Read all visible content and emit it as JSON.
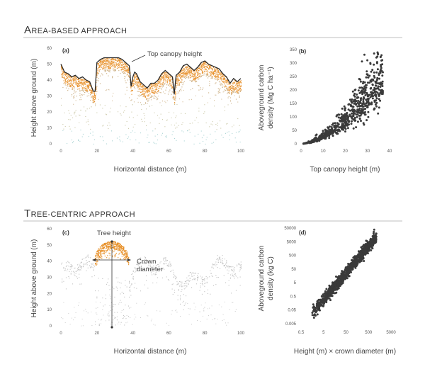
{
  "sections": {
    "area": {
      "cap": "A",
      "rest": "REA-BASED APPROACH"
    },
    "tree": {
      "cap": "T",
      "rest": "REE-CENTRIC APPROACH"
    }
  },
  "colors": {
    "orange": "#e8912a",
    "tan": "#c8a878",
    "olive": "#b9b68a",
    "teal": "#8cc4c4",
    "gray": "#b7b7b7",
    "points": "#3a3a3a",
    "canopy_line": "#2a2a2a"
  },
  "chart_data": [
    {
      "id": "a",
      "panel_label": "(a)",
      "type": "scatter",
      "xlabel": "Horizontal distance (m)",
      "ylabel": "Height above ground (m)",
      "xlim": [
        0,
        100
      ],
      "ylim": [
        0,
        60
      ],
      "xticks": [
        "0",
        "20",
        "40",
        "60",
        "80",
        "100"
      ],
      "yticks": [
        "0",
        "10",
        "20",
        "30",
        "40",
        "50",
        "60"
      ],
      "annotation": "Top canopy height",
      "top_canopy_height": {
        "x": [
          0,
          2,
          4,
          6,
          8,
          10,
          12,
          14,
          16,
          18,
          19,
          20,
          22,
          24,
          26,
          28,
          30,
          32,
          34,
          36,
          38,
          39,
          40,
          41,
          42,
          44,
          46,
          48,
          50,
          52,
          54,
          56,
          58,
          60,
          62,
          63,
          64,
          66,
          68,
          70,
          72,
          74,
          76,
          78,
          80,
          82,
          84,
          86,
          88,
          90,
          92,
          94,
          96,
          98,
          100
        ],
        "y": [
          50,
          45,
          44,
          42,
          43,
          41,
          42,
          40,
          39,
          33,
          33,
          51,
          53,
          54,
          54,
          54,
          54,
          54,
          53,
          51,
          49,
          36,
          42,
          45,
          44,
          39,
          37,
          35,
          38,
          38,
          40,
          44,
          46,
          44,
          42,
          31,
          43,
          45,
          49,
          50,
          48,
          46,
          48,
          51,
          52,
          50,
          49,
          48,
          47,
          44,
          42,
          38,
          41,
          39,
          41
        ]
      },
      "layers": [
        {
          "name": "orange canopy",
          "color_key": "orange"
        },
        {
          "name": "tan mid",
          "color_key": "tan"
        },
        {
          "name": "olive understory",
          "color_key": "olive"
        },
        {
          "name": "teal ground",
          "color_key": "teal"
        }
      ]
    },
    {
      "id": "b",
      "panel_label": "(b)",
      "type": "scatter",
      "xlabel": "Top canopy height (m)",
      "ylabel_line1": "Aboveground carbon",
      "ylabel_line2": "density (Mg C ha⁻¹)",
      "xlim": [
        0,
        40
      ],
      "ylim": [
        0,
        350
      ],
      "xticks": [
        "0",
        "10",
        "20",
        "30",
        "40"
      ],
      "yticks": [
        "0",
        "50",
        "100",
        "150",
        "200",
        "250",
        "300",
        "350"
      ],
      "relation": "carbon ≈ 0.55 × height^1.7",
      "n_points": 650
    },
    {
      "id": "c",
      "panel_label": "(c)",
      "type": "scatter",
      "xlabel": "Horizontal distance (m)",
      "ylabel": "Height above ground (m)",
      "xlim": [
        0,
        100
      ],
      "ylim": [
        0,
        60
      ],
      "xticks": [
        "0",
        "20",
        "40",
        "60",
        "80",
        "100"
      ],
      "yticks": [
        "0",
        "10",
        "20",
        "30",
        "40",
        "50",
        "60"
      ],
      "annotation_tree_height": "Tree height",
      "annotation_crown_1": "Crown",
      "annotation_crown_2": "diameter",
      "highlighted_tree": {
        "x": 28.5,
        "top": 52.5,
        "crown_left": 18.5,
        "crown_right": 37.5,
        "crown_height": 40.5
      }
    },
    {
      "id": "d",
      "panel_label": "(d)",
      "type": "scatter",
      "xlabel": "Height (m) × crown diameter (m)",
      "ylabel_line1": "Aboveground carbon",
      "ylabel_line2": "density (kg C)",
      "xscale": "log",
      "yscale": "log",
      "xlim": [
        0.5,
        5000
      ],
      "ylim": [
        0.005,
        50000
      ],
      "xticks": [
        "0.5",
        "5",
        "50",
        "500",
        "5000"
      ],
      "yticks": [
        "0.005",
        "0.05",
        "0.5",
        "5",
        "50",
        "500",
        "5000",
        "50000"
      ],
      "relation": "log10(carbon) ≈ 1.95 × log10(x) − 1.9",
      "n_points": 900
    }
  ]
}
